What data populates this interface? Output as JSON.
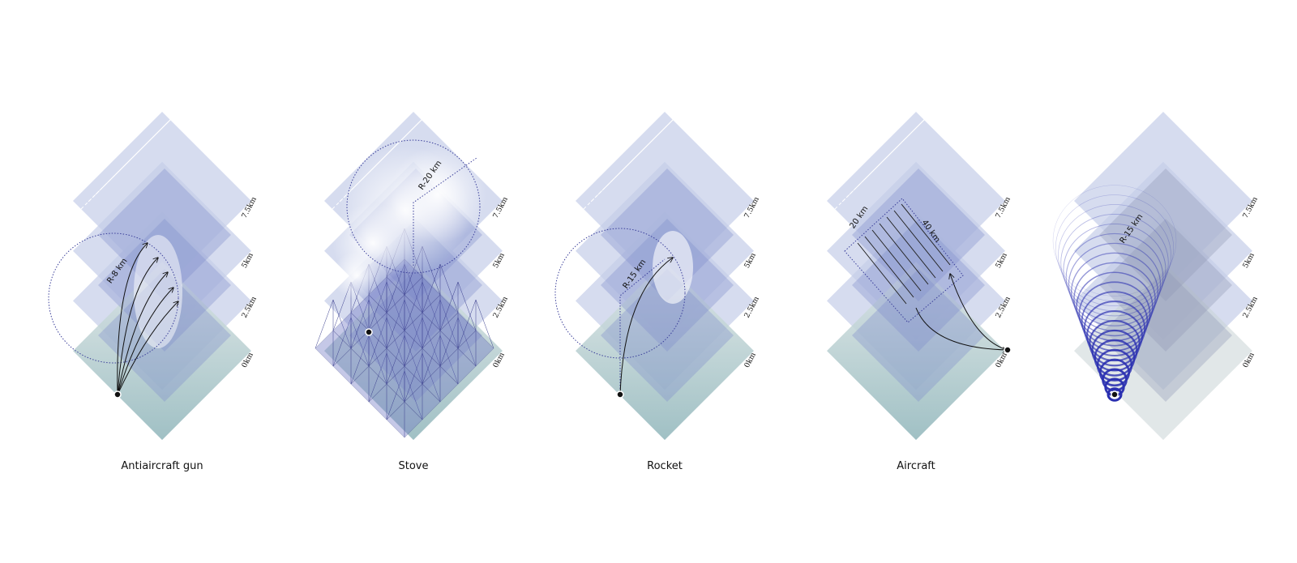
{
  "panels": [
    {
      "caption": "Antiaircraft gun",
      "altitudes": [
        "7.5km",
        "5km",
        "2.5km",
        "0km"
      ],
      "annotations": [
        "R-8 km"
      ]
    },
    {
      "caption": "Stove",
      "altitudes": [
        "7.5km",
        "5km",
        "2.5km",
        "0km"
      ],
      "annotations": [
        "R-20 km"
      ]
    },
    {
      "caption": "Rocket",
      "altitudes": [
        "7.5km",
        "5km",
        "2.5km",
        "0km"
      ],
      "annotations": [
        "R-15 km"
      ]
    },
    {
      "caption": "Aircraft",
      "altitudes": [
        "7.5km",
        "5km",
        "2.5km",
        "0km"
      ],
      "annotations": [
        "20 km",
        "40 km"
      ]
    },
    {
      "altitudes": [
        "7.5km",
        "5km",
        "2.5km",
        "0km"
      ],
      "annotations": [
        "R-15 km"
      ]
    }
  ]
}
